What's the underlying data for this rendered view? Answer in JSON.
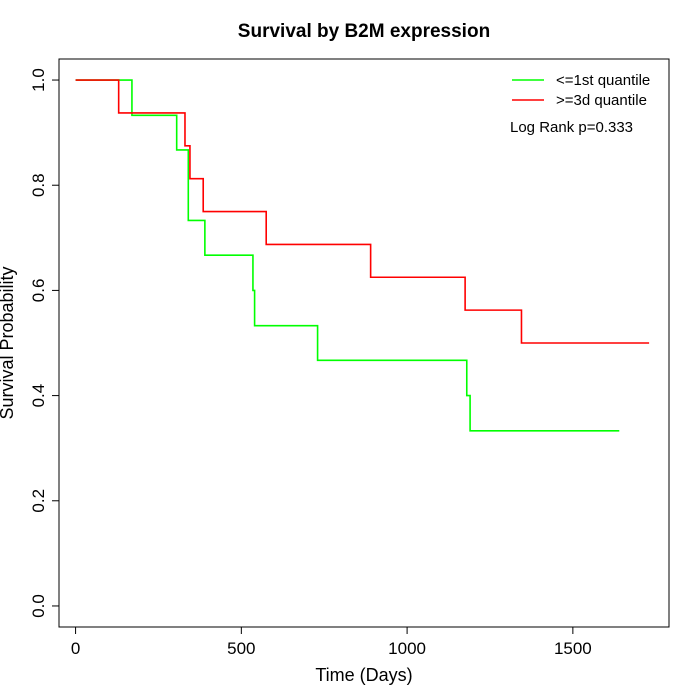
{
  "chart_data": {
    "type": "line",
    "subtype": "kaplan-meier step",
    "title": "Survival by B2M expression",
    "xlabel": "Time (Days)",
    "ylabel": "Survival Probability",
    "xlim": [
      -50,
      1790
    ],
    "ylim": [
      -0.04,
      1.04
    ],
    "xticks": [
      0,
      500,
      1000,
      1500
    ],
    "yticks": [
      0.0,
      0.2,
      0.4,
      0.6,
      0.8,
      1.0
    ],
    "xtick_labels": [
      "0",
      "500",
      "1000",
      "1500"
    ],
    "ytick_labels": [
      "0.0",
      "0.2",
      "0.4",
      "0.6",
      "0.8",
      "1.0"
    ],
    "grid": false,
    "legend_position": "top-right",
    "annotation": "Log Rank p=0.333",
    "series": [
      {
        "name": "<=1st quantile",
        "color": "#00ff00",
        "x": [
          0,
          170,
          305,
          340,
          390,
          535,
          540,
          730,
          1180,
          1190,
          1640
        ],
        "y": [
          1.0,
          0.933,
          0.867,
          0.733,
          0.667,
          0.6,
          0.533,
          0.467,
          0.4,
          0.333,
          0.333
        ]
      },
      {
        "name": ">=3d quantile",
        "color": "#ff0000",
        "x": [
          0,
          130,
          330,
          345,
          385,
          575,
          890,
          1175,
          1345,
          1730
        ],
        "y": [
          1.0,
          0.9375,
          0.875,
          0.8125,
          0.75,
          0.6875,
          0.625,
          0.5625,
          0.5,
          0.5
        ]
      }
    ]
  }
}
